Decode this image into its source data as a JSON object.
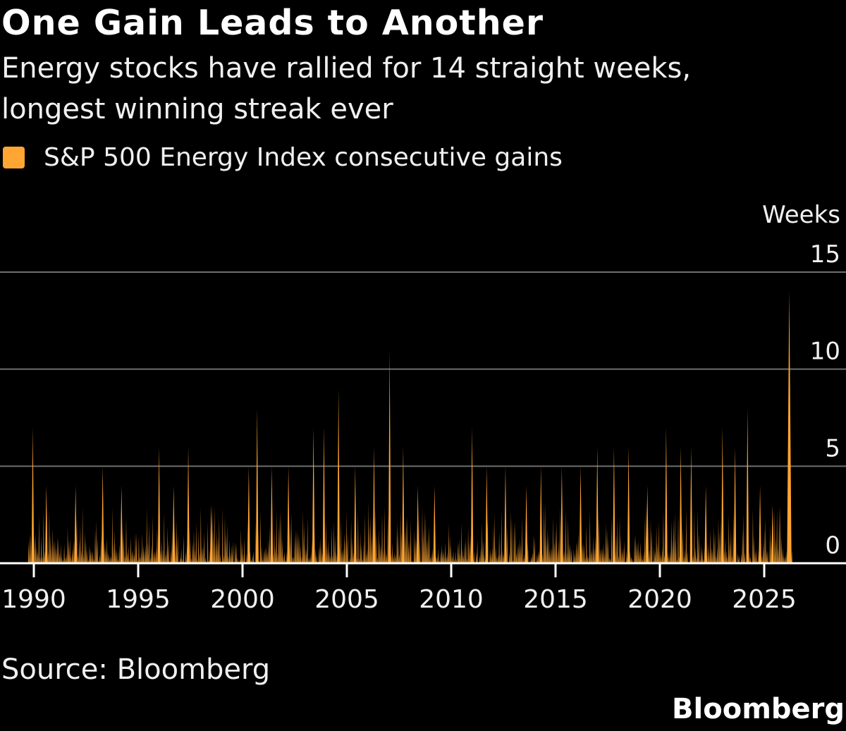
{
  "chart_data": {
    "type": "area",
    "title": "One Gain Leads to Another",
    "subtitle": "Energy stocks have rallied for 14 straight weeks, longest winning streak ever",
    "legend": [
      {
        "name": "S&P 500 Energy Index consecutive gains",
        "color": "#ffa533"
      }
    ],
    "ylabel": "Weeks",
    "ylim": [
      0,
      15
    ],
    "yticks": [
      0,
      5,
      10,
      15
    ],
    "xlim": [
      1989.6,
      2029.0
    ],
    "xticks": [
      1990,
      1995,
      2000,
      2005,
      2010,
      2015,
      2020,
      2025
    ],
    "x_tick_labels": [
      "1990",
      "1995",
      "2000",
      "2005",
      "2010",
      "2015",
      "2020",
      "2025"
    ],
    "grid": true,
    "series": [
      {
        "name": "S&P 500 Energy Index consecutive gains",
        "peaks": [
          {
            "x": 1989.95,
            "y": 7
          },
          {
            "x": 1990.6,
            "y": 4
          },
          {
            "x": 1992.0,
            "y": 4
          },
          {
            "x": 1993.3,
            "y": 5
          },
          {
            "x": 1994.2,
            "y": 4
          },
          {
            "x": 1996.0,
            "y": 6
          },
          {
            "x": 1996.7,
            "y": 4
          },
          {
            "x": 1997.4,
            "y": 6
          },
          {
            "x": 1998.5,
            "y": 3
          },
          {
            "x": 2000.3,
            "y": 5
          },
          {
            "x": 2000.7,
            "y": 8
          },
          {
            "x": 2001.4,
            "y": 5
          },
          {
            "x": 2002.2,
            "y": 5
          },
          {
            "x": 2003.4,
            "y": 7
          },
          {
            "x": 2003.9,
            "y": 7
          },
          {
            "x": 2004.6,
            "y": 9
          },
          {
            "x": 2005.4,
            "y": 5
          },
          {
            "x": 2006.3,
            "y": 6
          },
          {
            "x": 2007.05,
            "y": 11
          },
          {
            "x": 2007.7,
            "y": 6
          },
          {
            "x": 2008.4,
            "y": 4
          },
          {
            "x": 2009.2,
            "y": 4
          },
          {
            "x": 2011.0,
            "y": 7
          },
          {
            "x": 2011.7,
            "y": 5
          },
          {
            "x": 2012.6,
            "y": 5
          },
          {
            "x": 2013.6,
            "y": 4
          },
          {
            "x": 2014.3,
            "y": 5
          },
          {
            "x": 2015.3,
            "y": 5
          },
          {
            "x": 2016.2,
            "y": 5
          },
          {
            "x": 2017.0,
            "y": 6
          },
          {
            "x": 2017.8,
            "y": 6
          },
          {
            "x": 2018.5,
            "y": 6
          },
          {
            "x": 2019.4,
            "y": 4
          },
          {
            "x": 2020.3,
            "y": 7
          },
          {
            "x": 2021.0,
            "y": 6
          },
          {
            "x": 2021.5,
            "y": 6
          },
          {
            "x": 2022.2,
            "y": 4
          },
          {
            "x": 2023.0,
            "y": 7
          },
          {
            "x": 2023.6,
            "y": 6
          },
          {
            "x": 2024.2,
            "y": 8
          },
          {
            "x": 2024.8,
            "y": 4
          },
          {
            "x": 2025.4,
            "y": 3
          },
          {
            "x": 2026.2,
            "y": 14
          }
        ]
      }
    ]
  },
  "source_text": "Source: Bloomberg",
  "brand": "Bloomberg"
}
